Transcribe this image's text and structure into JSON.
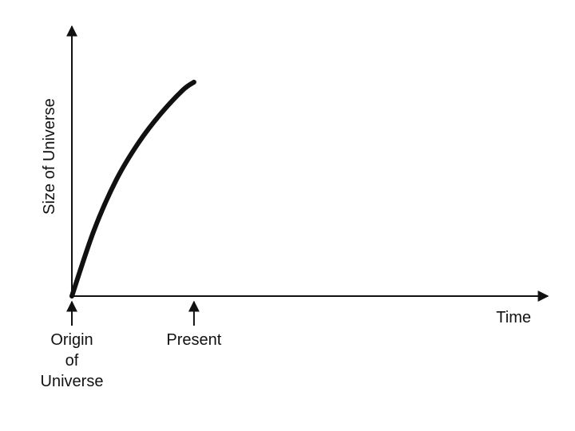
{
  "chart_data": {
    "type": "line",
    "title": "",
    "xlabel": "Time",
    "ylabel": "Size of Universe",
    "xlim": [
      0,
      10
    ],
    "ylim": [
      0,
      10
    ],
    "grid": false,
    "legend": "none",
    "line_color": "#111111",
    "series": [
      {
        "x": [
          0,
          0.5,
          1,
          1.5,
          2,
          2.5,
          2.75
        ],
        "values": [
          0,
          2.5,
          4.4,
          5.8,
          6.9,
          7.8,
          8.1
        ]
      }
    ],
    "annotations": [
      {
        "label_lines": [
          "Origin",
          "of",
          "Universe"
        ],
        "x": 0
      },
      {
        "label_lines": [
          "Present"
        ],
        "x": 2.75
      }
    ]
  }
}
